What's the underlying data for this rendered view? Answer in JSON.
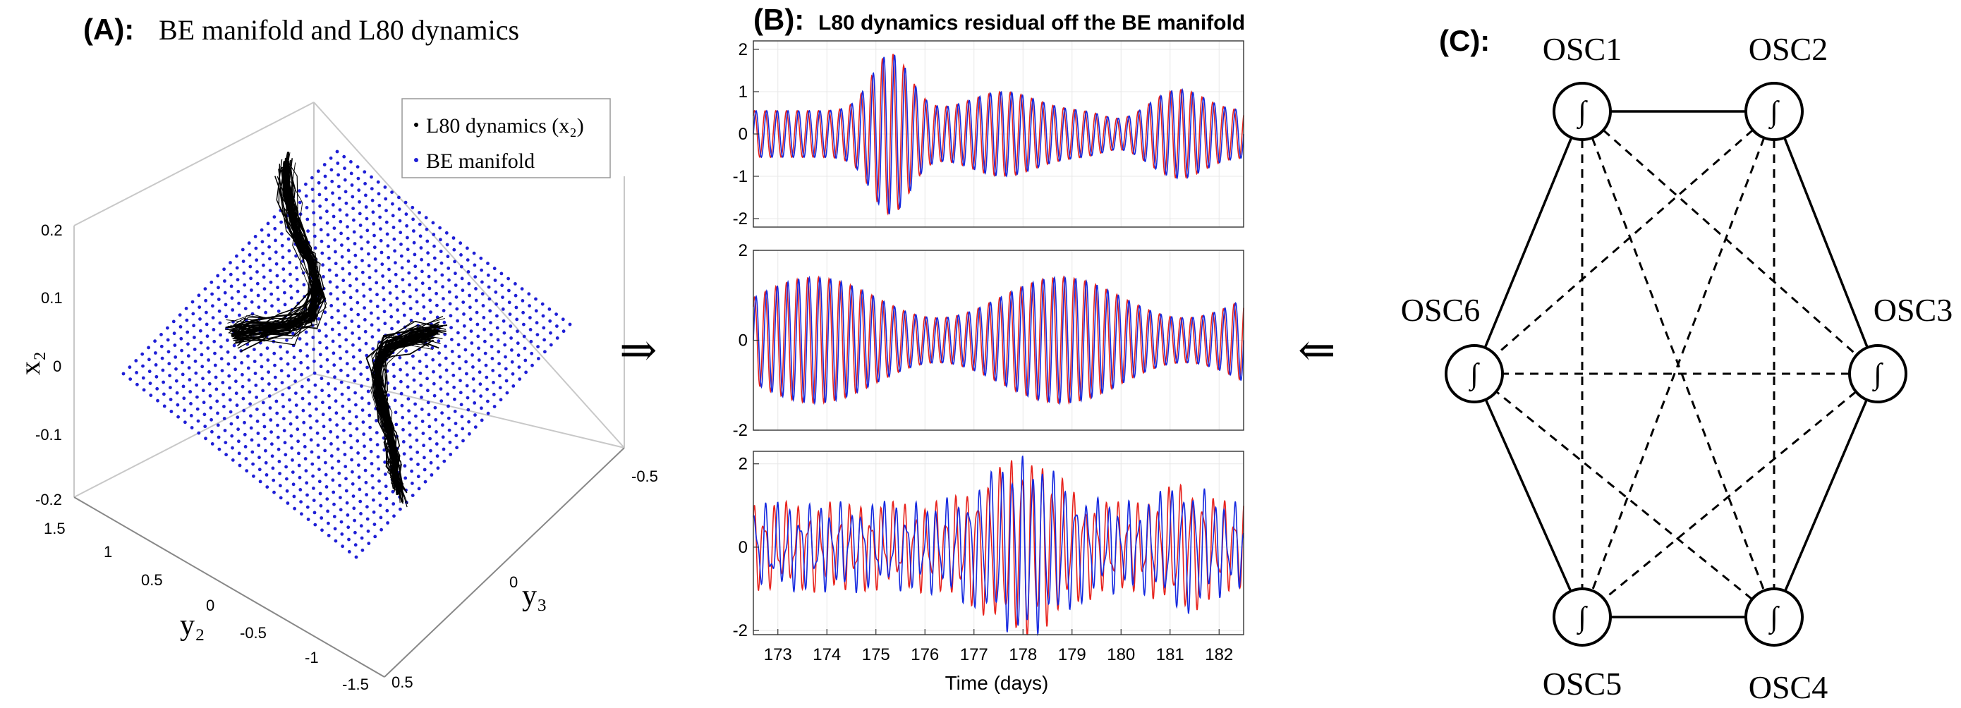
{
  "panel_a": {
    "label": "(A):",
    "title": "BE manifold and L80 dynamics",
    "legend": [
      "L80 dynamics (x₂)",
      "BE manifold"
    ],
    "zlabel": "x₂",
    "ylabel_left": "y₂",
    "ylabel_right": "y₃",
    "z_ticks": [
      "0.2",
      "0.1",
      "0",
      "-0.1",
      "-0.2"
    ],
    "y2_ticks": [
      "1.5",
      "1",
      "0.5",
      "0",
      "-0.5",
      "-1",
      "-1.5"
    ],
    "y3_ticks": [
      "-0.5",
      "0",
      "0.5"
    ],
    "colors": {
      "manifold": "#1f1fd6",
      "trajectory": "#000000"
    }
  },
  "arrow_right": "⇒",
  "arrow_left": "⇐",
  "panel_b": {
    "label": "(B):",
    "title": "L80 dynamics residual off the BE manifold",
    "xlabel": "Time (days)",
    "x_ticks": [
      "173",
      "174",
      "175",
      "176",
      "177",
      "178",
      "179",
      "180",
      "181",
      "182"
    ],
    "colors": {
      "series_a": "#e8221c",
      "series_b": "#1428e0"
    },
    "chart_data": [
      {
        "type": "line",
        "x_range": [
          172.5,
          182.5
        ],
        "ylim": [
          -2.2,
          2.2
        ],
        "yticks": [
          "2",
          "1",
          "0",
          "-1",
          "-2"
        ],
        "series": [
          {
            "name": "red"
          },
          {
            "name": "blue"
          }
        ]
      },
      {
        "type": "line",
        "x_range": [
          172.5,
          182.5
        ],
        "ylim": [
          -2,
          2
        ],
        "yticks": [
          "2",
          "0",
          "-2"
        ],
        "series": [
          {
            "name": "red"
          },
          {
            "name": "blue"
          }
        ]
      },
      {
        "type": "line",
        "x_range": [
          172.5,
          182.5
        ],
        "ylim": [
          -2.1,
          2.3
        ],
        "yticks": [
          "2",
          "0",
          "-2"
        ],
        "series": [
          {
            "name": "red"
          },
          {
            "name": "blue"
          }
        ]
      }
    ]
  },
  "panel_c": {
    "label": "(C):",
    "nodes": [
      "OSC1",
      "OSC2",
      "OSC3",
      "OSC4",
      "OSC5",
      "OSC6"
    ],
    "node_symbol": "∫"
  }
}
